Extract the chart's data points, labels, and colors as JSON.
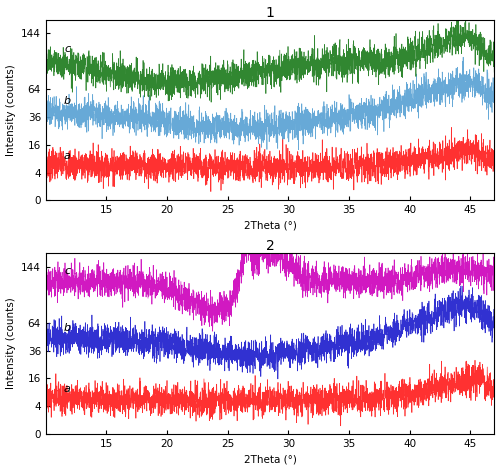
{
  "x_min": 10,
  "x_max": 47,
  "x_ticks": [
    15,
    20,
    25,
    30,
    35,
    40,
    45
  ],
  "y_ticks_data": [
    0,
    4,
    16,
    36,
    64,
    144
  ],
  "y_tick_labels": [
    "0",
    "4",
    "16",
    "36",
    "64",
    "144"
  ],
  "xlabel": "2Theta (°)",
  "ylabel": "Intensity (counts)",
  "title1": "1",
  "title2": "2",
  "plot1": {
    "a_color": "#ff1a1a",
    "b_color": "#56a0d3",
    "c_color": "#1a7a1a",
    "a_sqrt_base": 2.6,
    "b_sqrt_base": 6.4,
    "c_sqrt_base": 10.2,
    "a_noise": 0.55,
    "b_noise": 0.55,
    "c_noise": 0.55
  },
  "plot2": {
    "a_color": "#ff1a1a",
    "b_color": "#1a1acc",
    "c_color": "#cc00bb",
    "a_sqrt_base": 2.6,
    "b_sqrt_base": 6.9,
    "c_sqrt_base": 11.0,
    "a_noise": 0.55,
    "b_noise": 0.55,
    "c_noise": 0.55
  },
  "n_points": 3000,
  "fig_width": 5.0,
  "fig_height": 4.7,
  "dpi": 100,
  "lw": 0.5
}
